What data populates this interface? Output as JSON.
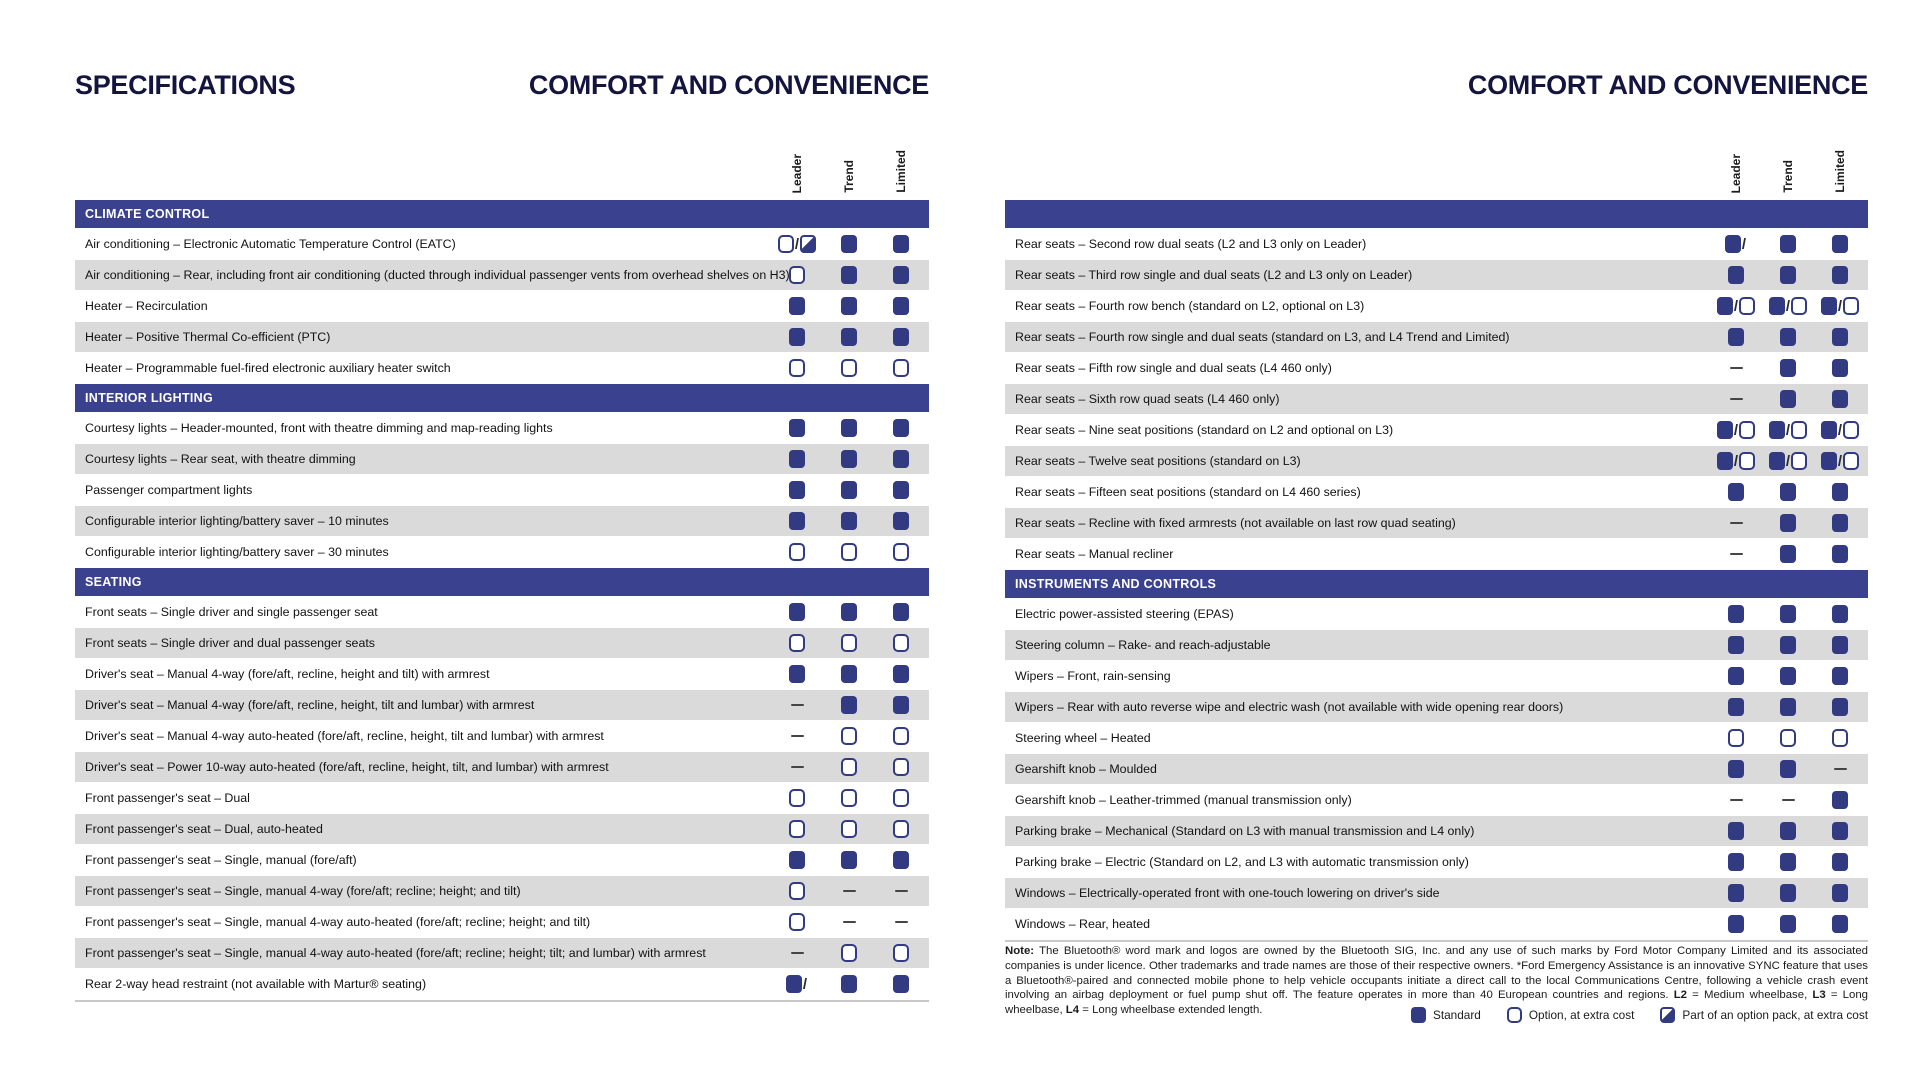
{
  "header": {
    "left_title": "SPECIFICATIONS",
    "left_heading": "COMFORT AND CONVENIENCE",
    "right_heading": "COMFORT AND CONVENIENCE"
  },
  "columns": [
    "Leader",
    "Trend",
    "Limited"
  ],
  "colors": {
    "section_bar_navy": "#3a428f",
    "mark_navy": "#323b82",
    "row_alt_gray": "#dadada",
    "title_navy": "#14153f"
  },
  "mark_codes": {
    "s": "standard",
    "o": "option-at-extra-cost",
    "p": "part-of-option-pack",
    "-": "not-available"
  },
  "left_sections": [
    {
      "title": "CLIMATE CONTROL",
      "rows": [
        {
          "label": "Air conditioning – Electronic Automatic Temperature Control (EATC)",
          "marks": [
            "o/p",
            "s",
            "s"
          ]
        },
        {
          "label": "Air conditioning – Rear, including front air conditioning (ducted through individual passenger vents from overhead shelves on H3)",
          "marks": [
            "o",
            "s",
            "s"
          ]
        },
        {
          "label": "Heater – Recirculation",
          "marks": [
            "s",
            "s",
            "s"
          ]
        },
        {
          "label": "Heater – Positive Thermal Co-efficient (PTC)",
          "marks": [
            "s",
            "s",
            "s"
          ]
        },
        {
          "label": "Heater – Programmable fuel-fired electronic auxiliary heater switch",
          "marks": [
            "o",
            "o",
            "o"
          ]
        }
      ]
    },
    {
      "title": "INTERIOR LIGHTING",
      "rows": [
        {
          "label": "Courtesy lights – Header-mounted, front with theatre dimming and map-reading lights",
          "marks": [
            "s",
            "s",
            "s"
          ]
        },
        {
          "label": "Courtesy lights – Rear seat, with theatre dimming",
          "marks": [
            "s",
            "s",
            "s"
          ]
        },
        {
          "label": "Passenger compartment lights",
          "marks": [
            "s",
            "s",
            "s"
          ]
        },
        {
          "label": "Configurable interior lighting/battery saver – 10 minutes",
          "marks": [
            "s",
            "s",
            "s"
          ]
        },
        {
          "label": "Configurable interior lighting/battery saver – 30 minutes",
          "marks": [
            "o",
            "o",
            "o"
          ]
        }
      ]
    },
    {
      "title": "SEATING",
      "rows": [
        {
          "label": "Front seats – Single driver and single passenger seat",
          "marks": [
            "s",
            "s",
            "s"
          ]
        },
        {
          "label": "Front seats – Single driver and dual passenger seats",
          "marks": [
            "o",
            "o",
            "o"
          ]
        },
        {
          "label": "Driver's seat – Manual 4-way (fore/aft, recline, height and tilt) with armrest",
          "marks": [
            "s",
            "s",
            "s"
          ]
        },
        {
          "label": "Driver's seat – Manual 4-way (fore/aft, recline, height, tilt and lumbar) with armrest",
          "marks": [
            "-",
            "s",
            "s"
          ]
        },
        {
          "label": "Driver's seat – Manual 4-way auto-heated (fore/aft, recline, height, tilt and lumbar) with armrest",
          "marks": [
            "-",
            "o",
            "o"
          ]
        },
        {
          "label": "Driver's seat – Power 10-way auto-heated (fore/aft, recline, height, tilt, and lumbar) with armrest",
          "marks": [
            "-",
            "o",
            "o"
          ]
        },
        {
          "label": "Front passenger's seat – Dual",
          "marks": [
            "o",
            "o",
            "o"
          ]
        },
        {
          "label": "Front passenger's seat – Dual, auto-heated",
          "marks": [
            "o",
            "o",
            "o"
          ]
        },
        {
          "label": "Front passenger's seat – Single, manual (fore/aft)",
          "marks": [
            "s",
            "s",
            "s"
          ]
        },
        {
          "label": "Front passenger's seat – Single, manual 4-way (fore/aft; recline; height; and tilt)",
          "marks": [
            "o",
            "-",
            "-"
          ]
        },
        {
          "label": "Front passenger's seat – Single, manual 4-way auto-heated (fore/aft; recline; height; and tilt)",
          "marks": [
            "o",
            "-",
            "-"
          ]
        },
        {
          "label": "Front passenger's seat – Single, manual 4-way auto-heated (fore/aft; recline; height; tilt; and lumbar) with armrest",
          "marks": [
            "-",
            "o",
            "o"
          ]
        },
        {
          "label": "Rear 2-way head restraint (not available with Martur® seating)",
          "marks": [
            "s/",
            "s",
            "s"
          ]
        }
      ]
    }
  ],
  "right_sections": [
    {
      "title": "",
      "rows": [
        {
          "label": "Rear seats – Second row dual seats (L2 and L3 only on Leader)",
          "marks": [
            "s/",
            "s",
            "s"
          ]
        },
        {
          "label": "Rear seats – Third row single and dual seats (L2 and L3 only on Leader)",
          "marks": [
            "s",
            "s",
            "s"
          ]
        },
        {
          "label": "Rear seats – Fourth row bench (standard on L2, optional on L3)",
          "marks": [
            "s/o",
            "s/o",
            "s/o"
          ]
        },
        {
          "label": "Rear seats – Fourth row single and dual seats (standard on L3, and L4 Trend and Limited)",
          "marks": [
            "s",
            "s",
            "s"
          ]
        },
        {
          "label": "Rear seats – Fifth row single and dual seats (L4 460 only)",
          "marks": [
            "-",
            "s",
            "s"
          ]
        },
        {
          "label": "Rear seats – Sixth row quad seats (L4 460 only)",
          "marks": [
            "-",
            "s",
            "s"
          ]
        },
        {
          "label": "Rear seats – Nine seat positions (standard on L2 and optional on L3)",
          "marks": [
            "s/o",
            "s/o",
            "s/o"
          ]
        },
        {
          "label": "Rear seats – Twelve seat positions (standard on L3)",
          "marks": [
            "s/o",
            "s/o",
            "s/o"
          ]
        },
        {
          "label": "Rear seats – Fifteen seat positions (standard on L4 460 series)",
          "marks": [
            "s",
            "s",
            "s"
          ]
        },
        {
          "label": "Rear seats – Recline with fixed armrests (not available on last row quad seating)",
          "marks": [
            "-",
            "s",
            "s"
          ]
        },
        {
          "label": "Rear seats – Manual recliner",
          "marks": [
            "-",
            "s",
            "s"
          ]
        }
      ]
    },
    {
      "title": "INSTRUMENTS AND CONTROLS",
      "rows": [
        {
          "label": "Electric power-assisted steering (EPAS)",
          "marks": [
            "s",
            "s",
            "s"
          ]
        },
        {
          "label": "Steering column – Rake- and reach-adjustable",
          "marks": [
            "s",
            "s",
            "s"
          ]
        },
        {
          "label": "Wipers – Front, rain-sensing",
          "marks": [
            "s",
            "s",
            "s"
          ]
        },
        {
          "label": "Wipers – Rear with auto reverse wipe and electric wash (not available with wide opening rear doors)",
          "marks": [
            "s",
            "s",
            "s"
          ]
        },
        {
          "label": "Steering wheel – Heated",
          "marks": [
            "o",
            "o",
            "o"
          ]
        },
        {
          "label": "Gearshift knob – Moulded",
          "marks": [
            "s",
            "s",
            "-"
          ]
        },
        {
          "label": "Gearshift knob – Leather-trimmed (manual transmission only)",
          "marks": [
            "-",
            "-",
            "s"
          ]
        },
        {
          "label": "Parking brake – Mechanical (Standard on L3 with manual transmission and L4 only)",
          "marks": [
            "s",
            "s",
            "s"
          ]
        },
        {
          "label": "Parking brake – Electric (Standard on L2, and L3 with automatic transmission only)",
          "marks": [
            "s",
            "s",
            "s"
          ]
        },
        {
          "label": "Windows – Electrically-operated front with one-touch lowering on driver's side",
          "marks": [
            "s",
            "s",
            "s"
          ]
        },
        {
          "label": "Windows – Rear, heated",
          "marks": [
            "s",
            "s",
            "s"
          ]
        }
      ]
    }
  ],
  "note": {
    "segments": [
      {
        "t": "Note:",
        "b": true
      },
      {
        "t": " The Bluetooth® word mark and logos are owned by the Bluetooth SIG, Inc. and any use of such marks by Ford Motor Company Limited and its associated companies is under licence. Other trademarks and trade names are those of their respective owners. *Ford Emergency Assistance is an innovative SYNC feature that uses a Bluetooth®-paired and connected mobile phone to help vehicle occupants initiate a direct call to the local Communications Centre, following a vehicle crash event involving an airbag deployment or fuel pump shut off. The feature operates in more than 40 European countries and regions. ",
        "b": false
      },
      {
        "t": "L2",
        "b": true
      },
      {
        "t": " = Medium wheelbase, ",
        "b": false
      },
      {
        "t": "L3",
        "b": true
      },
      {
        "t": " = Long wheelbase, ",
        "b": false
      },
      {
        "t": "L4",
        "b": true
      },
      {
        "t": " = Long wheelbase extended length.",
        "b": false
      }
    ]
  },
  "legend": [
    {
      "mark": "s",
      "label": "Standard"
    },
    {
      "mark": "o",
      "label": "Option, at extra cost"
    },
    {
      "mark": "p",
      "label": "Part of an option pack, at extra cost"
    }
  ]
}
